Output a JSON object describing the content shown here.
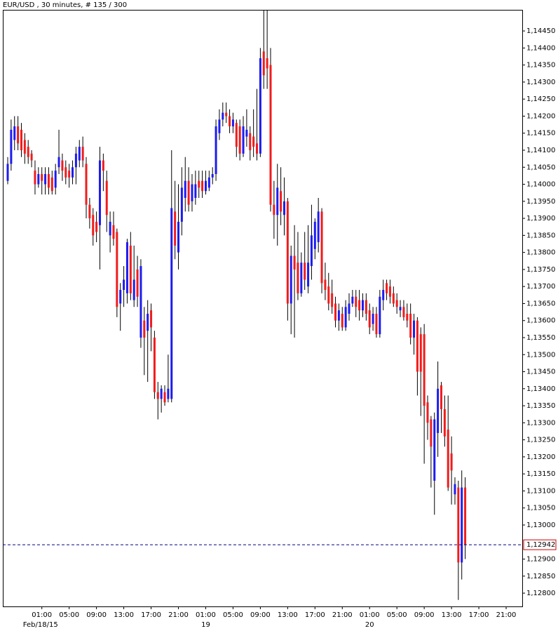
{
  "chart_data": {
    "type": "candlestick",
    "title": "EUR/USD , 30 minutes, # 135 / 300",
    "up_color": "#1c1cf0",
    "down_color": "#f01c1c",
    "wick_color": "#000000",
    "grid": false,
    "open": [
      1.1401,
      1.1406,
      1.1413,
      1.1417,
      1.1416,
      1.1413,
      1.1411,
      1.1409,
      1.1404,
      1.14,
      1.1403,
      1.14,
      1.1403,
      1.1402,
      1.1399,
      1.1405,
      1.1407,
      1.1405,
      1.1404,
      1.1402,
      1.1405,
      1.1407,
      1.1411,
      1.1406,
      1.1394,
      1.1391,
      1.1389,
      1.1388,
      1.1407,
      1.1401,
      1.1385,
      1.1388,
      1.1386,
      1.1365,
      1.1369,
      1.1368,
      1.1382,
      1.1366,
      1.1375,
      1.1355,
      1.136,
      1.1357,
      1.1363,
      1.1355,
      1.1339,
      1.1337,
      1.1339,
      1.1337,
      1.1337,
      1.1392,
      1.138,
      1.1389,
      1.1396,
      1.1401,
      1.1395,
      1.1396,
      1.1401,
      1.1401,
      1.1398,
      1.1399,
      1.1402,
      1.1403,
      1.1415,
      1.1419,
      1.1421,
      1.142,
      1.1417,
      1.1418,
      1.1417,
      1.1409,
      1.1414,
      1.1415,
      1.1414,
      1.1412,
      1.1409,
      1.1439,
      1.1437,
      1.1435,
      1.1394,
      1.1391,
      1.1398,
      1.1391,
      1.1395,
      1.1365,
      1.1379,
      1.1377,
      1.1368,
      1.1377,
      1.137,
      1.1376,
      1.1381,
      1.1383,
      1.1392,
      1.1372,
      1.137,
      1.1368,
      1.1365,
      1.136,
      1.1362,
      1.1358,
      1.1362,
      1.1365,
      1.1367,
      1.1366,
      1.1363,
      1.1366,
      1.1363,
      1.1359,
      1.1362,
      1.1356,
      1.1366,
      1.1371,
      1.137,
      1.1368,
      1.1366,
      1.1363,
      1.1364,
      1.1362,
      1.1362,
      1.1355,
      1.136,
      1.1356,
      1.1356,
      1.1336,
      1.1331,
      1.1313,
      1.1327,
      1.1341,
      1.1334,
      1.1328,
      1.1321,
      1.1309,
      1.1311,
      1.1289,
      1.1311
    ],
    "high": [
      1.1408,
      1.1419,
      1.142,
      1.142,
      1.1418,
      1.1415,
      1.1413,
      1.141,
      1.1407,
      1.1405,
      1.1405,
      1.1405,
      1.1405,
      1.1404,
      1.1406,
      1.1416,
      1.1409,
      1.1407,
      1.1406,
      1.1407,
      1.1411,
      1.1413,
      1.1414,
      1.1408,
      1.1396,
      1.1393,
      1.1392,
      1.1411,
      1.1409,
      1.1404,
      1.1392,
      1.1392,
      1.1387,
      1.1371,
      1.1376,
      1.1384,
      1.1386,
      1.1382,
      1.1379,
      1.1378,
      1.1364,
      1.1366,
      1.1365,
      1.1357,
      1.1342,
      1.1341,
      1.1341,
      1.135,
      1.141,
      1.1401,
      1.14,
      1.1405,
      1.1408,
      1.1405,
      1.1403,
      1.1404,
      1.1404,
      1.1404,
      1.1404,
      1.1404,
      1.1405,
      1.1419,
      1.1422,
      1.1424,
      1.1424,
      1.1422,
      1.1421,
      1.1419,
      1.1419,
      1.142,
      1.1422,
      1.1417,
      1.1422,
      1.1428,
      1.144,
      1.1451,
      1.1451,
      1.144,
      1.1401,
      1.1406,
      1.1405,
      1.1402,
      1.1396,
      1.1382,
      1.1388,
      1.1386,
      1.138,
      1.1386,
      1.1388,
      1.1394,
      1.139,
      1.1396,
      1.1393,
      1.1377,
      1.1374,
      1.1372,
      1.1367,
      1.1365,
      1.1364,
      1.1366,
      1.1368,
      1.1369,
      1.1369,
      1.1369,
      1.1368,
      1.1368,
      1.1365,
      1.1364,
      1.1364,
      1.1369,
      1.1372,
      1.1372,
      1.1372,
      1.137,
      1.1368,
      1.1366,
      1.1366,
      1.1365,
      1.1365,
      1.1362,
      1.1361,
      1.1358,
      1.1359,
      1.1338,
      1.1332,
      1.1333,
      1.1348,
      1.1342,
      1.1338,
      1.1338,
      1.1326,
      1.1314,
      1.1313,
      1.1316,
      1.1314
    ],
    "low": [
      1.14,
      1.1404,
      1.141,
      1.141,
      1.1408,
      1.1406,
      1.1406,
      1.1405,
      1.1397,
      1.1399,
      1.1397,
      1.1397,
      1.1397,
      1.1397,
      1.1397,
      1.1403,
      1.1401,
      1.14,
      1.1399,
      1.14,
      1.14,
      1.1405,
      1.1405,
      1.139,
      1.1387,
      1.1382,
      1.1383,
      1.1375,
      1.1398,
      1.1386,
      1.138,
      1.1382,
      1.1361,
      1.1357,
      1.1364,
      1.1365,
      1.1366,
      1.1364,
      1.1364,
      1.1352,
      1.1344,
      1.1342,
      1.1351,
      1.1337,
      1.1331,
      1.1333,
      1.1335,
      1.1336,
      1.1336,
      1.1378,
      1.1375,
      1.1385,
      1.1392,
      1.1392,
      1.1392,
      1.1394,
      1.1396,
      1.1396,
      1.1397,
      1.1398,
      1.14,
      1.1401,
      1.1413,
      1.1417,
      1.1418,
      1.1415,
      1.1415,
      1.1408,
      1.1407,
      1.1408,
      1.1411,
      1.1407,
      1.1408,
      1.1407,
      1.1408,
      1.1428,
      1.1428,
      1.1392,
      1.1384,
      1.1382,
      1.1388,
      1.1385,
      1.136,
      1.1356,
      1.1355,
      1.1366,
      1.1367,
      1.1369,
      1.1368,
      1.1372,
      1.1378,
      1.138,
      1.1368,
      1.1366,
      1.1363,
      1.1362,
      1.1358,
      1.1357,
      1.1357,
      1.1357,
      1.136,
      1.1364,
      1.1361,
      1.136,
      1.1361,
      1.136,
      1.1356,
      1.1357,
      1.1355,
      1.1355,
      1.1363,
      1.1366,
      1.1365,
      1.1364,
      1.1362,
      1.1361,
      1.136,
      1.1358,
      1.1353,
      1.135,
      1.1338,
      1.1332,
      1.1318,
      1.1325,
      1.1311,
      1.1303,
      1.132,
      1.1327,
      1.1323,
      1.131,
      1.1306,
      1.1306,
      1.1278,
      1.1284,
      1.129
    ],
    "close": [
      1.1406,
      1.1416,
      1.1417,
      1.1412,
      1.141,
      1.1409,
      1.1408,
      1.1407,
      1.14,
      1.1403,
      1.1401,
      1.1403,
      1.1399,
      1.1398,
      1.1404,
      1.1408,
      1.1404,
      1.1402,
      1.1402,
      1.1405,
      1.1409,
      1.1411,
      1.1407,
      1.1394,
      1.139,
      1.1385,
      1.1386,
      1.1407,
      1.1404,
      1.1391,
      1.1389,
      1.1384,
      1.1364,
      1.1369,
      1.1372,
      1.1383,
      1.1368,
      1.1372,
      1.1367,
      1.1376,
      1.1355,
      1.1362,
      1.1358,
      1.1339,
      1.1337,
      1.134,
      1.1336,
      1.134,
      1.1393,
      1.1382,
      1.1389,
      1.1399,
      1.1401,
      1.1394,
      1.14,
      1.14,
      1.1399,
      1.1398,
      1.1401,
      1.1402,
      1.1403,
      1.1417,
      1.1419,
      1.1421,
      1.142,
      1.1417,
      1.1419,
      1.1411,
      1.1409,
      1.1417,
      1.1416,
      1.141,
      1.1411,
      1.1409,
      1.1437,
      1.1432,
      1.1434,
      1.1394,
      1.1391,
      1.1399,
      1.1392,
      1.1395,
      1.1365,
      1.1379,
      1.1375,
      1.1368,
      1.1377,
      1.1372,
      1.1377,
      1.1385,
      1.1389,
      1.1392,
      1.1371,
      1.1369,
      1.1365,
      1.1364,
      1.136,
      1.1363,
      1.1358,
      1.1364,
      1.1365,
      1.1367,
      1.1364,
      1.1363,
      1.1366,
      1.1362,
      1.1358,
      1.1362,
      1.1356,
      1.1367,
      1.1369,
      1.1368,
      1.1367,
      1.1365,
      1.1364,
      1.1364,
      1.1361,
      1.136,
      1.1355,
      1.136,
      1.1345,
      1.1345,
      1.1335,
      1.133,
      1.1323,
      1.1331,
      1.134,
      1.1334,
      1.1326,
      1.1311,
      1.1316,
      1.1312,
      1.1289,
      1.1311,
      1.12942
    ],
    "ylim": [
      1.12761,
      1.14512
    ],
    "yticks": [
      {
        "value": 1.128,
        "label": "1,12800"
      },
      {
        "value": 1.1285,
        "label": "1,12850"
      },
      {
        "value": 1.129,
        "label": "1,12900"
      },
      {
        "value": 1.13,
        "label": "1,13000"
      },
      {
        "value": 1.1305,
        "label": "1,13050"
      },
      {
        "value": 1.131,
        "label": "1,13100"
      },
      {
        "value": 1.1315,
        "label": "1,13150"
      },
      {
        "value": 1.132,
        "label": "1,13200"
      },
      {
        "value": 1.1325,
        "label": "1,13250"
      },
      {
        "value": 1.133,
        "label": "1,13300"
      },
      {
        "value": 1.1335,
        "label": "1,13350"
      },
      {
        "value": 1.134,
        "label": "1,13400"
      },
      {
        "value": 1.1345,
        "label": "1,13450"
      },
      {
        "value": 1.135,
        "label": "1,13500"
      },
      {
        "value": 1.1355,
        "label": "1,13550"
      },
      {
        "value": 1.136,
        "label": "1,13600"
      },
      {
        "value": 1.1365,
        "label": "1,13650"
      },
      {
        "value": 1.137,
        "label": "1,13700"
      },
      {
        "value": 1.1375,
        "label": "1,13750"
      },
      {
        "value": 1.138,
        "label": "1,13800"
      },
      {
        "value": 1.1385,
        "label": "1,13850"
      },
      {
        "value": 1.139,
        "label": "1,13900"
      },
      {
        "value": 1.1395,
        "label": "1,13950"
      },
      {
        "value": 1.14,
        "label": "1,14000"
      },
      {
        "value": 1.1405,
        "label": "1,14050"
      },
      {
        "value": 1.141,
        "label": "1,14100"
      },
      {
        "value": 1.1415,
        "label": "1,14150"
      },
      {
        "value": 1.142,
        "label": "1,14200"
      },
      {
        "value": 1.1425,
        "label": "1,14250"
      },
      {
        "value": 1.143,
        "label": "1,14300"
      },
      {
        "value": 1.1435,
        "label": "1,14350"
      },
      {
        "value": 1.144,
        "label": "1,14400"
      },
      {
        "value": 1.1445,
        "label": "1,14450"
      }
    ],
    "xticks": [
      {
        "value": 10,
        "label": "01:00"
      },
      {
        "value": 18,
        "label": "05:00"
      },
      {
        "value": 26,
        "label": "09:00"
      },
      {
        "value": 34,
        "label": "13:00"
      },
      {
        "value": 42,
        "label": "17:00"
      },
      {
        "value": 50,
        "label": "21:00"
      },
      {
        "value": 58,
        "label": "01:00"
      },
      {
        "value": 66,
        "label": "05:00"
      },
      {
        "value": 74,
        "label": "09:00"
      },
      {
        "value": 82,
        "label": "13:00"
      },
      {
        "value": 90,
        "label": "17:00"
      },
      {
        "value": 98,
        "label": "21:00"
      },
      {
        "value": 106,
        "label": "01:00"
      },
      {
        "value": 114,
        "label": "05:00"
      },
      {
        "value": 122,
        "label": "09:00"
      },
      {
        "value": 130,
        "label": "13:00"
      },
      {
        "value": 138,
        "label": "17:00"
      },
      {
        "value": 146,
        "label": "21:00"
      }
    ],
    "date_labels": [
      {
        "value": 9.6,
        "label": "Feb/18/15"
      },
      {
        "value": 58,
        "label": "19"
      },
      {
        "value": 106,
        "label": "20"
      }
    ],
    "last_price": {
      "value": 1.12942,
      "label": "1,12942",
      "color": "#000080"
    }
  }
}
